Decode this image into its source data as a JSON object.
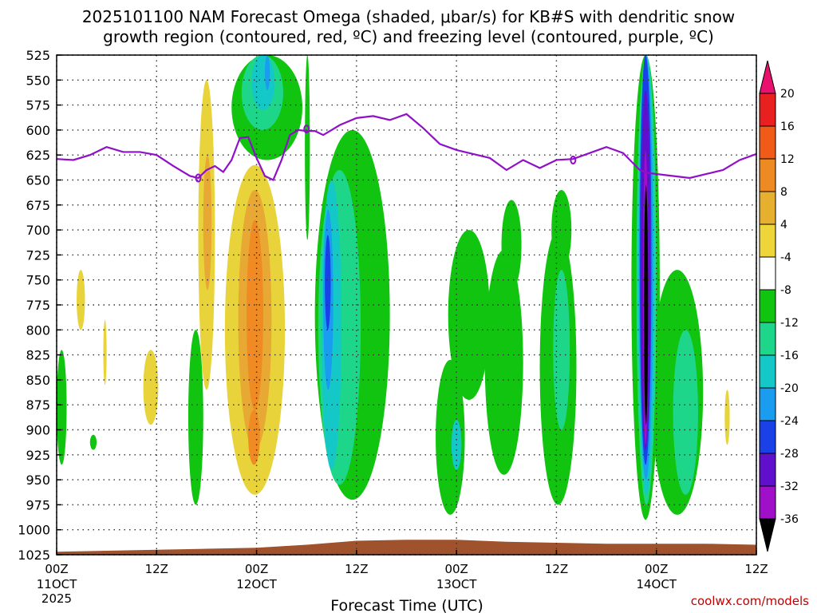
{
  "chart_data": {
    "type": "heatmap",
    "title_line1": "2025101100 NAM Forecast Omega (shaded, μbar/s) for KB#S with dendritic snow",
    "title_line2": "growth region (contoured, red, ºC) and freezing level (contoured, purple, ºC)",
    "xlabel": "Forecast Time (UTC)",
    "x_range_hours": [
      0,
      84
    ],
    "x_ticks": [
      {
        "hour": 0,
        "label": "00Z",
        "sub": "11OCT",
        "sub2": "2025"
      },
      {
        "hour": 12,
        "label": "12Z",
        "sub": "",
        "sub2": ""
      },
      {
        "hour": 24,
        "label": "00Z",
        "sub": "12OCT",
        "sub2": ""
      },
      {
        "hour": 36,
        "label": "12Z",
        "sub": "",
        "sub2": ""
      },
      {
        "hour": 48,
        "label": "00Z",
        "sub": "13OCT",
        "sub2": ""
      },
      {
        "hour": 60,
        "label": "12Z",
        "sub": "",
        "sub2": ""
      },
      {
        "hour": 72,
        "label": "00Z",
        "sub": "14OCT",
        "sub2": ""
      },
      {
        "hour": 84,
        "label": "12Z",
        "sub": "",
        "sub2": ""
      }
    ],
    "y_levels_mb": [
      "525",
      "550",
      "575",
      "600",
      "625",
      "650",
      "675",
      "700",
      "725",
      "750",
      "775",
      "800",
      "825",
      "850",
      "875",
      "900",
      "925",
      "950",
      "975",
      "1000",
      "1025"
    ],
    "colorbar": {
      "labels": [
        "20",
        "16",
        "12",
        "8",
        "4",
        "-4",
        "-8",
        "-12",
        "-16",
        "-20",
        "-24",
        "-28",
        "-32",
        "-36"
      ],
      "colors": [
        "#e8126e",
        "#e82020",
        "#f05c18",
        "#ee8a22",
        "#e6b02e",
        "#eed63a",
        "#ffffff",
        "#10c410",
        "#1ed68a",
        "#14c8c8",
        "#1a9cf0",
        "#1a40e8",
        "#6010cc",
        "#a010c8",
        "#a0a0a0",
        "#000000"
      ]
    },
    "freezing_level_mb": {
      "hours": [
        0,
        2,
        4,
        6,
        8,
        10,
        12,
        14,
        16,
        17,
        18,
        19,
        20,
        21,
        22,
        23,
        24,
        25,
        26,
        27,
        28,
        29,
        30,
        31,
        32,
        33,
        34,
        36,
        38,
        40,
        42,
        44,
        46,
        48,
        50,
        52,
        54,
        56,
        58,
        60,
        62,
        64,
        66,
        68,
        70,
        71,
        72,
        73,
        74,
        76,
        78,
        80,
        82,
        84
      ],
      "values": [
        629,
        630,
        625,
        617,
        622,
        622,
        625,
        636,
        646,
        648,
        640,
        636,
        642,
        630,
        608,
        607,
        628,
        646,
        650,
        630,
        605,
        600,
        601,
        601,
        605,
        600,
        595,
        588,
        586,
        590,
        584,
        598,
        614,
        620,
        624,
        628,
        640,
        630,
        638,
        630,
        629,
        623,
        617,
        623,
        640,
        643,
        644,
        645,
        646,
        648,
        644,
        640,
        630,
        624
      ]
    },
    "freezing_level_markers": [
      {
        "hour": 17,
        "value": 648
      },
      {
        "hour": 30,
        "value": 599
      },
      {
        "hour": 62,
        "value": 630
      }
    ],
    "regions": [
      {
        "c": 8,
        "h": [
          17.0,
          19.0
        ],
        "p": [
          550,
          860
        ]
      },
      {
        "c": 8,
        "h": [
          20.2,
          27.4
        ],
        "p": [
          635,
          965
        ]
      },
      {
        "c": 8,
        "h": [
          2.4,
          3.4
        ],
        "p": [
          740,
          800
        ]
      },
      {
        "c": 8,
        "h": [
          5.6,
          6.0
        ],
        "p": [
          790,
          855
        ]
      },
      {
        "c": 8,
        "h": [
          10.4,
          12.2
        ],
        "p": [
          820,
          895
        ]
      },
      {
        "c": 8,
        "h": [
          80.2,
          80.8
        ],
        "p": [
          860,
          915
        ]
      },
      {
        "c": 12,
        "h": [
          17.6,
          18.6
        ],
        "p": [
          625,
          760
        ]
      },
      {
        "c": 12,
        "h": [
          21.8,
          25.8
        ],
        "p": [
          660,
          920
        ]
      },
      {
        "c": 16,
        "h": [
          22.8,
          24.8
        ],
        "p": [
          690,
          880
        ]
      },
      {
        "c": 16,
        "h": [
          23.0,
          24.4
        ],
        "p": [
          880,
          935
        ]
      },
      {
        "c": -8,
        "h": [
          21.0,
          29.5
        ],
        "p": [
          525,
          630
        ]
      },
      {
        "c": -8,
        "h": [
          29.8,
          30.4
        ],
        "p": [
          525,
          710
        ]
      },
      {
        "c": -8,
        "h": [
          31.0,
          40.0
        ],
        "p": [
          600,
          970
        ]
      },
      {
        "c": -8,
        "h": [
          45.5,
          49.0
        ],
        "p": [
          830,
          985
        ]
      },
      {
        "c": -8,
        "h": [
          47.0,
          52.0
        ],
        "p": [
          700,
          870
        ]
      },
      {
        "c": -8,
        "h": [
          51.4,
          56.0
        ],
        "p": [
          720,
          945
        ]
      },
      {
        "c": -8,
        "h": [
          53.4,
          55.8
        ],
        "p": [
          670,
          760
        ]
      },
      {
        "c": -8,
        "h": [
          58.0,
          62.4
        ],
        "p": [
          700,
          975
        ]
      },
      {
        "c": -8,
        "h": [
          59.4,
          61.8
        ],
        "p": [
          660,
          740
        ]
      },
      {
        "c": -8,
        "h": [
          69.0,
          72.4
        ],
        "p": [
          525,
          990
        ]
      },
      {
        "c": -8,
        "h": [
          71.4,
          77.6
        ],
        "p": [
          740,
          985
        ]
      },
      {
        "c": -8,
        "h": [
          0.0,
          1.2
        ],
        "p": [
          820,
          935
        ]
      },
      {
        "c": -8,
        "h": [
          15.8,
          17.6
        ],
        "p": [
          800,
          975
        ]
      },
      {
        "c": -8,
        "h": [
          4.0,
          4.8
        ],
        "p": [
          905,
          920
        ]
      },
      {
        "c": -12,
        "h": [
          22.2,
          27.2
        ],
        "p": [
          525,
          600
        ]
      },
      {
        "c": -12,
        "h": [
          31.4,
          36.5
        ],
        "p": [
          640,
          955
        ]
      },
      {
        "c": -12,
        "h": [
          74.0,
          77.0
        ],
        "p": [
          800,
          965
        ]
      },
      {
        "c": -12,
        "h": [
          59.6,
          61.6
        ],
        "p": [
          740,
          900
        ]
      },
      {
        "c": -12,
        "h": [
          69.6,
          72.0
        ],
        "p": [
          525,
          975
        ]
      },
      {
        "c": -16,
        "h": [
          23.4,
          26.2
        ],
        "p": [
          525,
          580
        ]
      },
      {
        "c": -16,
        "h": [
          31.8,
          34.2
        ],
        "p": [
          650,
          940
        ]
      },
      {
        "c": -16,
        "h": [
          69.8,
          71.8
        ],
        "p": [
          525,
          965
        ]
      },
      {
        "c": -16,
        "h": [
          47.4,
          48.6
        ],
        "p": [
          890,
          940
        ]
      },
      {
        "c": -20,
        "h": [
          32.0,
          33.2
        ],
        "p": [
          680,
          860
        ]
      },
      {
        "c": -20,
        "h": [
          25.0,
          25.6
        ],
        "p": [
          525,
          560
        ]
      },
      {
        "c": -20,
        "h": [
          69.9,
          71.6
        ],
        "p": [
          525,
          950
        ]
      },
      {
        "c": -24,
        "h": [
          32.2,
          32.9
        ],
        "p": [
          705,
          800
        ]
      },
      {
        "c": -24,
        "h": [
          70.0,
          71.4
        ],
        "p": [
          525,
          935
        ]
      },
      {
        "c": -28,
        "h": [
          70.1,
          71.3
        ],
        "p": [
          560,
          920
        ]
      },
      {
        "c": -32,
        "h": [
          70.4,
          71.0
        ],
        "p": [
          620,
          915
        ]
      },
      {
        "c": -36,
        "h": [
          70.5,
          71.0
        ],
        "p": [
          655,
          895
        ]
      }
    ],
    "terrain": {
      "hours": [
        0,
        6,
        12,
        18,
        24,
        30,
        36,
        42,
        48,
        54,
        60,
        66,
        72,
        78,
        84
      ],
      "surface_mb": [
        1022,
        1021,
        1020,
        1019,
        1018,
        1015,
        1011,
        1010,
        1010,
        1012,
        1013,
        1014,
        1014,
        1014,
        1015
      ],
      "color": "#a0522d"
    },
    "credit": "coolwx.com/models"
  }
}
